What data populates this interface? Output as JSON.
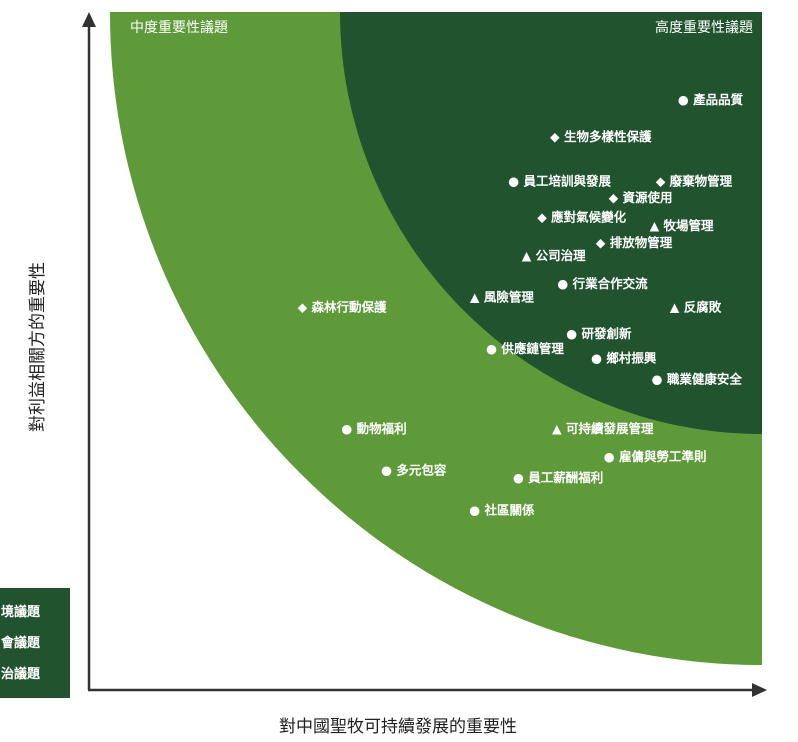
{
  "chart_data": {
    "type": "scatter",
    "title": "",
    "xlabel": "對中國聖牧可持續發展的重要性",
    "ylabel": "對利益相關方的重要性",
    "zones": {
      "medium": "中度重要性議題",
      "high": "高度重要性議題"
    },
    "legend": [
      {
        "text": "境議題"
      },
      {
        "text": "會議題"
      },
      {
        "text": "治議題"
      }
    ],
    "colors": {
      "high": "#21532f",
      "medium": "#5f9a3a",
      "legend_bg": "#21532f",
      "axis": "#333333"
    },
    "marker_glyphs": {
      "circle": "●",
      "diamond": "◆",
      "triangle": "▲"
    },
    "x_range": [
      0,
      100
    ],
    "y_range": [
      0,
      100
    ],
    "points": [
      {
        "label": "產品品質",
        "marker": "circle",
        "x": 87.5,
        "y": 87.0
      },
      {
        "label": "生物多樣性保護",
        "marker": "diamond",
        "x": 68.5,
        "y": 81.6
      },
      {
        "label": "員工培訓與發展",
        "marker": "circle",
        "x": 62.3,
        "y": 75.0
      },
      {
        "label": "廢棄物管理",
        "marker": "diamond",
        "x": 84.2,
        "y": 75.0
      },
      {
        "label": "資源使用",
        "marker": "diamond",
        "x": 77.2,
        "y": 72.6
      },
      {
        "label": "應對氣候變化",
        "marker": "diamond",
        "x": 66.6,
        "y": 69.7
      },
      {
        "label": "牧場管理",
        "marker": "triangle",
        "x": 83.3,
        "y": 68.4
      },
      {
        "label": "排放物管理",
        "marker": "diamond",
        "x": 75.3,
        "y": 65.9
      },
      {
        "label": "公司治理",
        "marker": "triangle",
        "x": 64.3,
        "y": 64.0
      },
      {
        "label": "行業合作交流",
        "marker": "circle",
        "x": 69.6,
        "y": 59.9
      },
      {
        "label": "風險管理",
        "marker": "triangle",
        "x": 56.6,
        "y": 57.9
      },
      {
        "label": "反腐敗",
        "marker": "triangle",
        "x": 86.3,
        "y": 56.4
      },
      {
        "label": "森林行動保護",
        "marker": "diamond",
        "x": 31.0,
        "y": 56.4
      },
      {
        "label": "研發創新",
        "marker": "circle",
        "x": 70.9,
        "y": 52.5
      },
      {
        "label": "供應鏈管理",
        "marker": "circle",
        "x": 59.0,
        "y": 50.3
      },
      {
        "label": "鄉村振興",
        "marker": "circle",
        "x": 74.6,
        "y": 48.9
      },
      {
        "label": "職業健康安全",
        "marker": "circle",
        "x": 83.6,
        "y": 45.8
      },
      {
        "label": "動物福利",
        "marker": "circle",
        "x": 37.5,
        "y": 38.5
      },
      {
        "label": "可持續發展管理",
        "marker": "triangle",
        "x": 68.8,
        "y": 38.5
      },
      {
        "label": "雇傭與勞工準則",
        "marker": "circle",
        "x": 76.5,
        "y": 34.4
      },
      {
        "label": "多元包容",
        "marker": "circle",
        "x": 43.4,
        "y": 32.4
      },
      {
        "label": "員工薪酬福利",
        "marker": "circle",
        "x": 63.0,
        "y": 31.3
      },
      {
        "label": "社區關係",
        "marker": "circle",
        "x": 56.5,
        "y": 26.5
      }
    ]
  }
}
